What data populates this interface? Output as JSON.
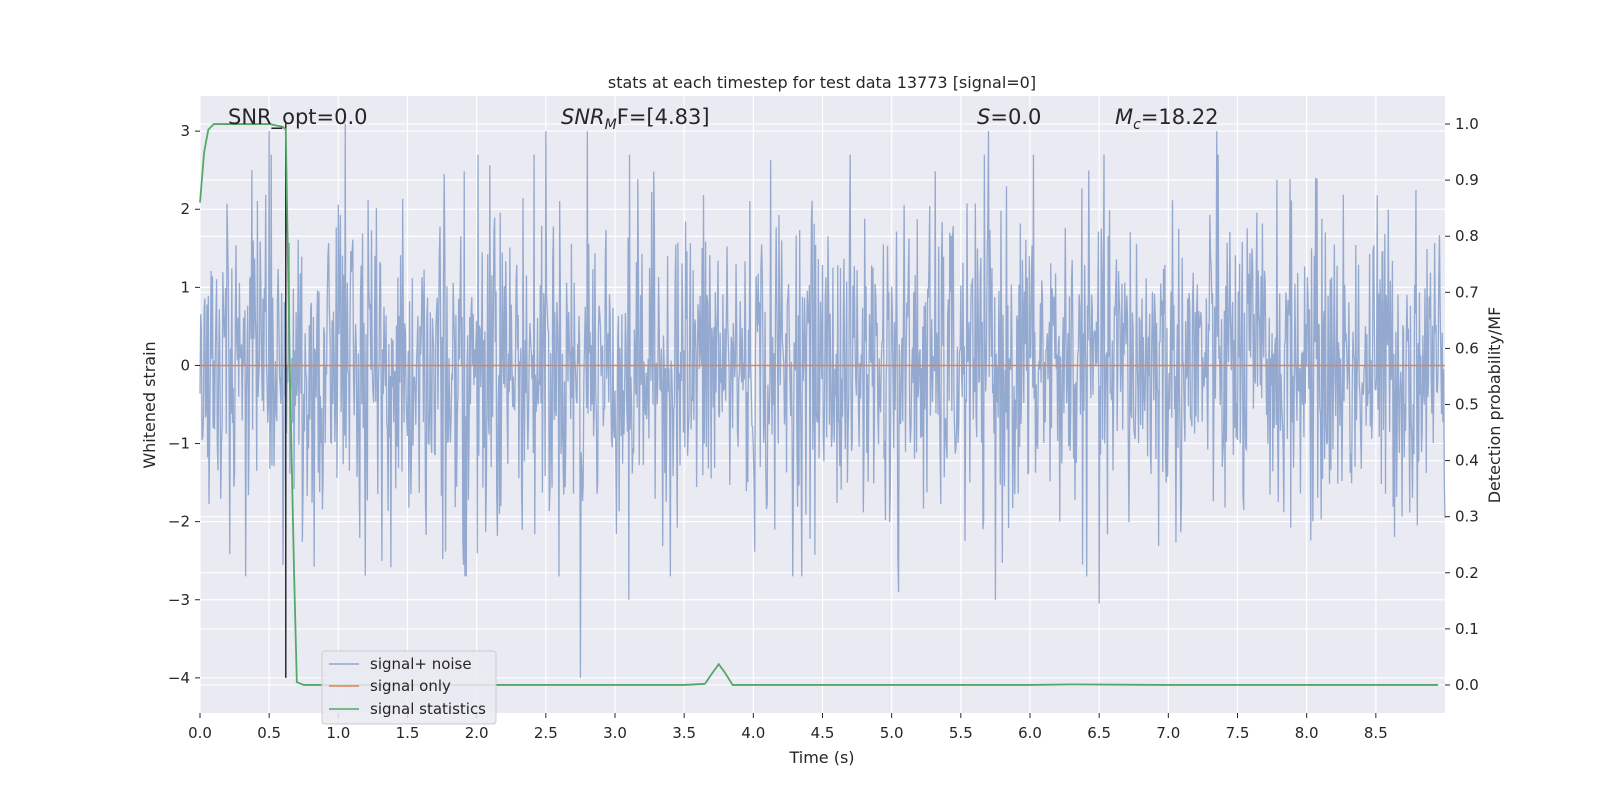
{
  "chart_data": {
    "type": "line",
    "title": "stats at each timestep for test data 13773 [signal=0]",
    "xlabel": "Time (s)",
    "ylabel_left": "Whitened strain",
    "ylabel_right": "Detection probability/MF",
    "xlim": [
      0.0,
      9.0
    ],
    "ylim_left": [
      -4.45,
      3.45
    ],
    "ylim_right": [
      -0.05,
      1.05
    ],
    "xticks": [
      "0.0",
      "0.5",
      "1.0",
      "1.5",
      "2.0",
      "2.5",
      "3.0",
      "3.5",
      "4.0",
      "4.5",
      "5.0",
      "5.5",
      "6.0",
      "6.5",
      "7.0",
      "7.5",
      "8.0",
      "8.5"
    ],
    "yticks_left": [
      "3",
      "2",
      "1",
      "0",
      "−1",
      "−2",
      "−3",
      "−4"
    ],
    "yticks_right": [
      "1.0",
      "0.9",
      "0.8",
      "0.7",
      "0.6",
      "0.5",
      "0.4",
      "0.3",
      "0.2",
      "0.1",
      "0.0"
    ],
    "grid": true,
    "legend_position": "lower-left",
    "colors": {
      "noise": "#8fa5cc",
      "signal_only": "#dd8452",
      "statistics": "#55a868",
      "marker": "#2b2b2b",
      "background": "#eaeaf2"
    },
    "annotations": [
      {
        "kind": "plain",
        "text": "SNR_opt=0.0"
      },
      {
        "kind": "snrmf",
        "base": "SNR",
        "sub": "M",
        "rest": "F=[4.83]"
      },
      {
        "kind": "s",
        "base": "S",
        "rest": "=0.0"
      },
      {
        "kind": "mc",
        "base": "M",
        "sub": "c",
        "rest": "=18.22"
      }
    ],
    "marker_line": {
      "x": 0.62,
      "y_from": -4.0,
      "y_to": 3.1
    },
    "series": [
      {
        "name": "signal+ noise",
        "axis": "left",
        "style": "dense-noise",
        "duration": 9.0,
        "samples": 1800,
        "std": 1.0,
        "spikes": [
          {
            "x": 0.5,
            "y": 3.0
          },
          {
            "x": 1.05,
            "y": 3.1
          },
          {
            "x": 2.5,
            "y": 3.0
          },
          {
            "x": 2.75,
            "y": -4.0
          },
          {
            "x": 2.8,
            "y": 3.0
          },
          {
            "x": 3.1,
            "y": -3.0
          },
          {
            "x": 5.05,
            "y": -2.9
          },
          {
            "x": 5.7,
            "y": 3.0
          },
          {
            "x": 5.75,
            "y": -3.0
          },
          {
            "x": 6.5,
            "y": -3.05
          },
          {
            "x": 7.35,
            "y": 3.0
          }
        ]
      },
      {
        "name": "signal only",
        "axis": "left",
        "x": [
          0.0,
          9.0
        ],
        "y": [
          0.0,
          0.0
        ]
      },
      {
        "name": "signal statistics",
        "axis": "right",
        "x": [
          0.0,
          0.03,
          0.06,
          0.1,
          0.2,
          0.3,
          0.4,
          0.5,
          0.6,
          0.62,
          0.65,
          0.68,
          0.7,
          0.75,
          0.8,
          1.0,
          2.0,
          3.0,
          3.5,
          3.65,
          3.7,
          3.75,
          3.8,
          3.85,
          4.0,
          5.0,
          6.0,
          6.3,
          7.0,
          8.0,
          8.95
        ],
        "y": [
          0.86,
          0.95,
          0.99,
          1.0,
          1.0,
          1.0,
          1.0,
          1.0,
          0.995,
          0.99,
          0.55,
          0.2,
          0.005,
          0.0,
          0.0,
          0.0,
          0.0,
          0.0,
          0.0,
          0.002,
          0.02,
          0.037,
          0.02,
          0.0,
          0.0,
          0.0,
          0.0,
          0.001,
          0.0,
          0.0,
          0.0
        ]
      }
    ]
  }
}
